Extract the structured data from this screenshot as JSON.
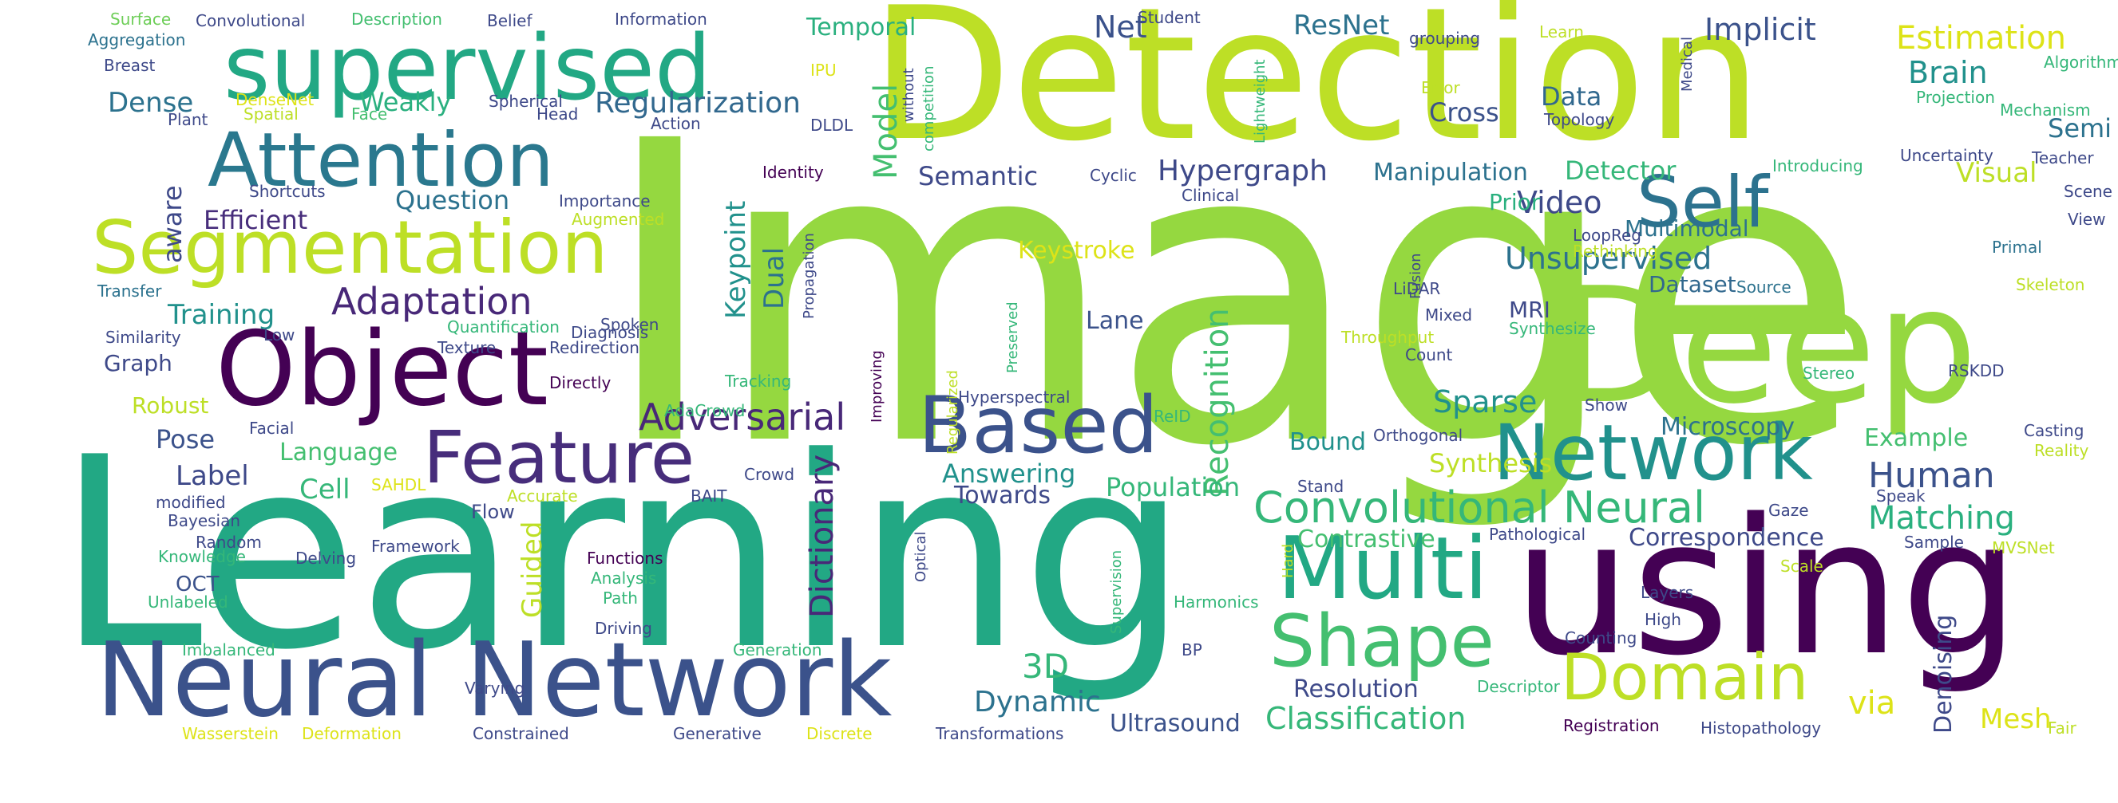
{
  "words": [
    {
      "text": "Image",
      "color": "#95d840"
    },
    {
      "text": "Learning",
      "color": "#22a884"
    },
    {
      "text": "Detection",
      "color": "#bddf26"
    },
    {
      "text": "Deep",
      "color": "#95d840"
    },
    {
      "text": "using",
      "color": "#440154"
    },
    {
      "text": "supervised",
      "color": "#22a884"
    },
    {
      "text": "Neural Network",
      "color": "#3b528b"
    },
    {
      "text": "Object",
      "color": "#440154"
    },
    {
      "text": "Segmentation",
      "color": "#bddf26"
    },
    {
      "text": "Attention",
      "color": "#2a788e"
    },
    {
      "text": "Multi",
      "color": "#22a884"
    },
    {
      "text": "Network",
      "color": "#21918c"
    },
    {
      "text": "Based",
      "color": "#3b528b"
    },
    {
      "text": "Feature",
      "color": "#472d7b"
    },
    {
      "text": "Shape",
      "color": "#44bf70"
    },
    {
      "text": "Domain",
      "color": "#bddf26"
    },
    {
      "text": "Self",
      "color": "#2c728e"
    },
    {
      "text": "Convolutional Neural",
      "color": "#35b779"
    },
    {
      "text": "Adaptation",
      "color": "#482878"
    },
    {
      "text": "Recognition",
      "color": "#44bf70"
    },
    {
      "text": "Adversarial",
      "color": "#482878"
    },
    {
      "text": "Dictionary",
      "color": "#482878"
    },
    {
      "text": "Regularization",
      "color": "#31688e"
    },
    {
      "text": "Estimation",
      "color": "#dde318"
    },
    {
      "text": "Implicit",
      "color": "#3b528b"
    },
    {
      "text": "ResNet",
      "color": "#2c728e"
    },
    {
      "text": "Net",
      "color": "#3b528b"
    },
    {
      "text": "Temporal",
      "color": "#2ab07f"
    },
    {
      "text": "Model",
      "color": "#44bf70"
    },
    {
      "text": "Brain",
      "color": "#21918c"
    },
    {
      "text": "Data",
      "color": "#31688e"
    },
    {
      "text": "Cross",
      "color": "#3b528b"
    },
    {
      "text": "Semi",
      "color": "#2c728e"
    },
    {
      "text": "Visual",
      "color": "#bddf26"
    },
    {
      "text": "Hypergraph",
      "color": "#3e4989"
    },
    {
      "text": "Semantic",
      "color": "#3e4989"
    },
    {
      "text": "Manipulation",
      "color": "#2c728e"
    },
    {
      "text": "Detector",
      "color": "#35b779"
    },
    {
      "text": "Video",
      "color": "#3e4989"
    },
    {
      "text": "Multimodal",
      "color": "#2c728e"
    },
    {
      "text": "Prior",
      "color": "#2ab07f"
    },
    {
      "text": "Unsupervised",
      "color": "#2c728e"
    },
    {
      "text": "Dataset",
      "color": "#31688e"
    },
    {
      "text": "Keystroke",
      "color": "#dde318"
    },
    {
      "text": "Keypoint",
      "color": "#21918c"
    },
    {
      "text": "Dual",
      "color": "#2c728e"
    },
    {
      "text": "Lane",
      "color": "#3b528b"
    },
    {
      "text": "MRI",
      "color": "#3e4989"
    },
    {
      "text": "Sparse",
      "color": "#21918c"
    },
    {
      "text": "Bound",
      "color": "#21918c"
    },
    {
      "text": "Microscopy",
      "color": "#2c728e"
    },
    {
      "text": "Human",
      "color": "#3b528b"
    },
    {
      "text": "Matching",
      "color": "#2ab07f"
    },
    {
      "text": "Example",
      "color": "#44bf70"
    },
    {
      "text": "Synthesis",
      "color": "#bddf26"
    },
    {
      "text": "Population",
      "color": "#35b779"
    },
    {
      "text": "Answering",
      "color": "#21918c"
    },
    {
      "text": "Towards",
      "color": "#3e4989"
    },
    {
      "text": "Contrastive",
      "color": "#44bf70"
    },
    {
      "text": "Correspondence",
      "color": "#3e4989"
    },
    {
      "text": "Question",
      "color": "#2c728e"
    },
    {
      "text": "Efficient",
      "color": "#472d7b"
    },
    {
      "text": "aware",
      "color": "#3e4989"
    },
    {
      "text": "Dense",
      "color": "#2c728e"
    },
    {
      "text": "Weakly",
      "color": "#2ab07f"
    },
    {
      "text": "Training",
      "color": "#21918c"
    },
    {
      "text": "Graph",
      "color": "#3e4989"
    },
    {
      "text": "Robust",
      "color": "#bddf26"
    },
    {
      "text": "Pose",
      "color": "#3b528b"
    },
    {
      "text": "Language",
      "color": "#44bf70"
    },
    {
      "text": "Label",
      "color": "#3e4989"
    },
    {
      "text": "Cell",
      "color": "#35b779"
    },
    {
      "text": "Guided",
      "color": "#bddf26"
    },
    {
      "text": "Flow",
      "color": "#3e4989"
    },
    {
      "text": "3D",
      "color": "#35b779"
    },
    {
      "text": "Dynamic",
      "color": "#2c728e"
    },
    {
      "text": "via",
      "color": "#dde318"
    },
    {
      "text": "Mesh",
      "color": "#dde318"
    },
    {
      "text": "Denoising",
      "color": "#3e4989"
    },
    {
      "text": "Resolution",
      "color": "#3e4989"
    },
    {
      "text": "Classification",
      "color": "#35b779"
    },
    {
      "text": "Ultrasound",
      "color": "#3b528b"
    },
    {
      "text": "OCT",
      "color": "#3b528b"
    },
    {
      "text": "Surface",
      "color": "#6ece58"
    },
    {
      "text": "Convolutional",
      "color": "#3e4989"
    },
    {
      "text": "Description",
      "color": "#44bf70"
    },
    {
      "text": "Belief",
      "color": "#3e4989"
    },
    {
      "text": "Information",
      "color": "#3e4989"
    },
    {
      "text": "Aggregation",
      "color": "#2c728e"
    },
    {
      "text": "Breast",
      "color": "#3e4989"
    },
    {
      "text": "IPU",
      "color": "#dde318"
    },
    {
      "text": "DenseNet",
      "color": "#dde318"
    },
    {
      "text": "Spherical",
      "color": "#3e4989"
    },
    {
      "text": "Spatial",
      "color": "#bddf26"
    },
    {
      "text": "Face",
      "color": "#44bf70"
    },
    {
      "text": "Head",
      "color": "#3e4989"
    },
    {
      "text": "Plant",
      "color": "#3e4989"
    },
    {
      "text": "Action",
      "color": "#3e4989"
    },
    {
      "text": "DLDL",
      "color": "#3e4989"
    },
    {
      "text": "Student",
      "color": "#3e4989"
    },
    {
      "text": "grouping",
      "color": "#3e4989"
    },
    {
      "text": "Learn",
      "color": "#bddf26"
    },
    {
      "text": "Error",
      "color": "#bddf26"
    },
    {
      "text": "Topology",
      "color": "#3e4989"
    },
    {
      "text": "Identity",
      "color": "#440154"
    },
    {
      "text": "Shortcuts",
      "color": "#3e4989"
    },
    {
      "text": "Importance",
      "color": "#3e4989"
    },
    {
      "text": "Augmented",
      "color": "#bddf26"
    },
    {
      "text": "Cyclic",
      "color": "#3e4989"
    },
    {
      "text": "Clinical",
      "color": "#3e4989"
    },
    {
      "text": "Introducing",
      "color": "#35b779"
    },
    {
      "text": "Uncertainty",
      "color": "#3e4989"
    },
    {
      "text": "Teacher",
      "color": "#3e4989"
    },
    {
      "text": "Scene",
      "color": "#3e4989"
    },
    {
      "text": "View",
      "color": "#3e4989"
    },
    {
      "text": "Algorithm",
      "color": "#35b779"
    },
    {
      "text": "Projection",
      "color": "#35b779"
    },
    {
      "text": "Mechanism",
      "color": "#35b779"
    },
    {
      "text": "LoopReg",
      "color": "#3e4989"
    },
    {
      "text": "Rethinking",
      "color": "#bddf26"
    },
    {
      "text": "Primal",
      "color": "#2c728e"
    },
    {
      "text": "Source",
      "color": "#2c728e"
    },
    {
      "text": "Skeleton",
      "color": "#bddf26"
    },
    {
      "text": "Transfer",
      "color": "#2c728e"
    },
    {
      "text": "Low",
      "color": "#3e4989"
    },
    {
      "text": "Diagnosis",
      "color": "#3e4989"
    },
    {
      "text": "Similarity",
      "color": "#3e4989"
    },
    {
      "text": "Quantification",
      "color": "#35b779"
    },
    {
      "text": "Spoken",
      "color": "#3e4989"
    },
    {
      "text": "Texture",
      "color": "#3e4989"
    },
    {
      "text": "Redirection",
      "color": "#3e4989"
    },
    {
      "text": "Tracking",
      "color": "#35b779"
    },
    {
      "text": "LiDAR",
      "color": "#3e4989"
    },
    {
      "text": "Mixed",
      "color": "#3e4989"
    },
    {
      "text": "Throughput",
      "color": "#bddf26"
    },
    {
      "text": "Synthesize",
      "color": "#35b779"
    },
    {
      "text": "Count",
      "color": "#3e4989"
    },
    {
      "text": "Directly",
      "color": "#440154"
    },
    {
      "text": "AdaCrowd",
      "color": "#35b779"
    },
    {
      "text": "Hyperspectral",
      "color": "#3e4989"
    },
    {
      "text": "Stereo",
      "color": "#35b779"
    },
    {
      "text": "RSKDD",
      "color": "#3e4989"
    },
    {
      "text": "Show",
      "color": "#3e4989"
    },
    {
      "text": "Facial",
      "color": "#3e4989"
    },
    {
      "text": "ReID",
      "color": "#35b779"
    },
    {
      "text": "Orthogonal",
      "color": "#3e4989"
    },
    {
      "text": "Casting",
      "color": "#3e4989"
    },
    {
      "text": "Reality",
      "color": "#bddf26"
    },
    {
      "text": "SAHDL",
      "color": "#dde318"
    },
    {
      "text": "Crowd",
      "color": "#3e4989"
    },
    {
      "text": "Stand",
      "color": "#3e4989"
    },
    {
      "text": "Speak",
      "color": "#3e4989"
    },
    {
      "text": "modified",
      "color": "#3e4989"
    },
    {
      "text": "Bayesian",
      "color": "#3e4989"
    },
    {
      "text": "BAIT",
      "color": "#3e4989"
    },
    {
      "text": "Accurate",
      "color": "#bddf26"
    },
    {
      "text": "Gaze",
      "color": "#3e4989"
    },
    {
      "text": "Random",
      "color": "#3e4989"
    },
    {
      "text": "Knowledge",
      "color": "#35b779"
    },
    {
      "text": "Framework",
      "color": "#3e4989"
    },
    {
      "text": "Pathological",
      "color": "#3e4989"
    },
    {
      "text": "Sample",
      "color": "#3e4989"
    },
    {
      "text": "MVSNet",
      "color": "#bddf26"
    },
    {
      "text": "Delving",
      "color": "#3e4989"
    },
    {
      "text": "Functions",
      "color": "#440154"
    },
    {
      "text": "Analysis",
      "color": "#35b779"
    },
    {
      "text": "Scale",
      "color": "#bddf26"
    },
    {
      "text": "Unlabeled",
      "color": "#35b779"
    },
    {
      "text": "Path",
      "color": "#35b779"
    },
    {
      "text": "Harmonics",
      "color": "#35b779"
    },
    {
      "text": "Layers",
      "color": "#3e4989"
    },
    {
      "text": "High",
      "color": "#3e4989"
    },
    {
      "text": "Driving",
      "color": "#3e4989"
    },
    {
      "text": "Counting",
      "color": "#3e4989"
    },
    {
      "text": "Imbalanced",
      "color": "#35b779"
    },
    {
      "text": "Generation",
      "color": "#35b779"
    },
    {
      "text": "BP",
      "color": "#3e4989"
    },
    {
      "text": "Varying",
      "color": "#3e4989"
    },
    {
      "text": "Descriptor",
      "color": "#35b779"
    },
    {
      "text": "Wasserstein",
      "color": "#dde318"
    },
    {
      "text": "Deformation",
      "color": "#dde318"
    },
    {
      "text": "Constrained",
      "color": "#3e4989"
    },
    {
      "text": "Generative",
      "color": "#3e4989"
    },
    {
      "text": "Discrete",
      "color": "#dde318"
    },
    {
      "text": "Transformations",
      "color": "#3e4989"
    },
    {
      "text": "Registration",
      "color": "#440154"
    },
    {
      "text": "Histopathology",
      "color": "#3e4989"
    },
    {
      "text": "Fair",
      "color": "#bddf26"
    },
    {
      "text": "without",
      "color": "#3e4989"
    },
    {
      "text": "competition",
      "color": "#35b779"
    },
    {
      "text": "Lightweight",
      "color": "#35b779"
    },
    {
      "text": "Medical",
      "color": "#3e4989"
    },
    {
      "text": "Propagation",
      "color": "#3e4989"
    },
    {
      "text": "Improving",
      "color": "#440154"
    },
    {
      "text": "Regularized",
      "color": "#bddf26"
    },
    {
      "text": "Preserved",
      "color": "#35b779"
    },
    {
      "text": "Fusion",
      "color": "#3e4989"
    },
    {
      "text": "Supervision",
      "color": "#35b779"
    },
    {
      "text": "Optical",
      "color": "#3e4989"
    },
    {
      "text": "Hard",
      "color": "#bddf26"
    }
  ]
}
